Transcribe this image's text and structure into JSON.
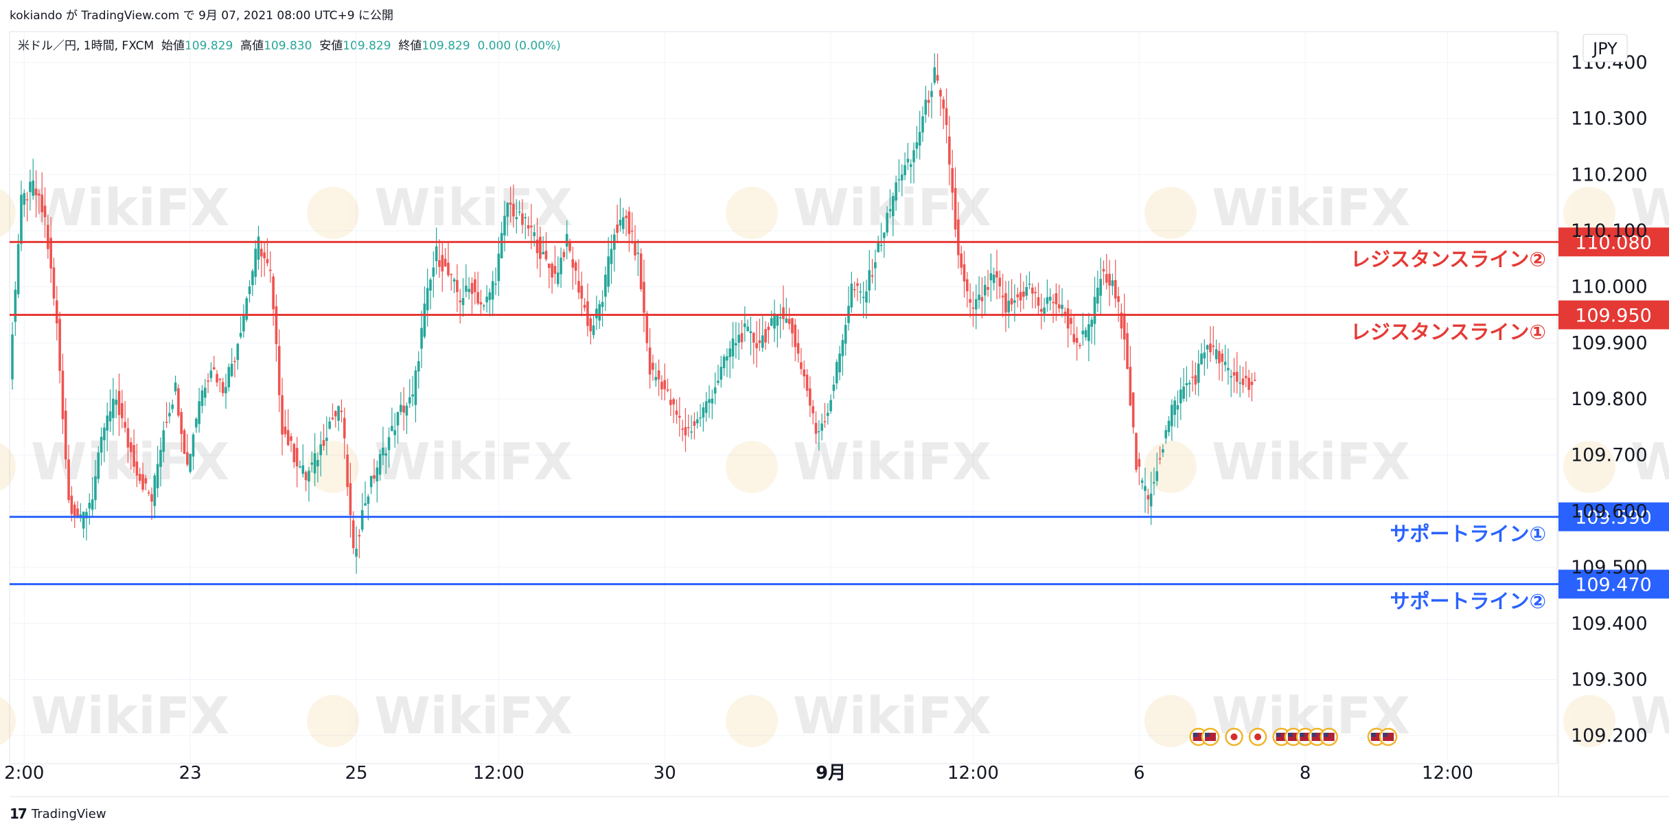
{
  "header": {
    "published": "kokiando が TradingView.com で 9月 07, 2021 08:00 UTC+9 に公開"
  },
  "legend": {
    "symbol": "米ドル／円, 1時間, FXCM",
    "open_label": "始値",
    "open": "109.829",
    "high_label": "高値",
    "high": "109.830",
    "low_label": "安値",
    "low": "109.829",
    "close_label": "終値",
    "close": "109.829",
    "change": "0.000 (0.00%)"
  },
  "currency_button": "JPY",
  "watermark": "WikiFX",
  "footer": {
    "logo": "17",
    "brand": "TradingView"
  },
  "colors": {
    "up": "#26a69a",
    "down": "#ef5350",
    "resistance": "#e53935",
    "support": "#2962ff",
    "grid": "#f0f3fa",
    "text": "#131722"
  },
  "chart_data": {
    "type": "candlestick",
    "ylim": [
      109.15,
      110.455
    ],
    "y_ticks": [
      "110.400",
      "110.300",
      "110.200",
      "110.100",
      "110.000",
      "109.900",
      "109.800",
      "109.700",
      "109.600",
      "109.500",
      "109.400",
      "109.300",
      "109.200"
    ],
    "x_ticks": [
      {
        "label": "2:00",
        "index": 1
      },
      {
        "label": "23",
        "index": 15
      },
      {
        "label": "25",
        "index": 29
      },
      {
        "label": "12:00",
        "index": 41
      },
      {
        "label": "30",
        "index": 55
      },
      {
        "label": "9月",
        "index": 69,
        "bold": true
      },
      {
        "label": "12:00",
        "index": 81
      },
      {
        "label": "6",
        "index": 95
      },
      {
        "label": "8",
        "index": 109
      },
      {
        "label": "12:00",
        "index": 121
      }
    ],
    "horizontal_lines": [
      {
        "price": 110.08,
        "label": "110.080",
        "annotation": "レジスタンスライン②",
        "kind": "resistance"
      },
      {
        "price": 109.95,
        "label": "109.950",
        "annotation": "レジスタンスライン①",
        "kind": "resistance"
      },
      {
        "price": 109.59,
        "label": "109.590",
        "annotation": "サポートライン①",
        "kind": "support"
      },
      {
        "price": 109.47,
        "label": "109.470",
        "annotation": "サポートライン②",
        "kind": "support"
      }
    ],
    "close_path": [
      [
        0,
        109.85
      ],
      [
        1,
        110.15
      ],
      [
        2,
        110.18
      ],
      [
        3,
        110.12
      ],
      [
        4,
        109.93
      ],
      [
        5,
        109.62
      ],
      [
        6,
        109.58
      ],
      [
        7,
        109.63
      ],
      [
        8,
        109.75
      ],
      [
        9,
        109.8
      ],
      [
        10,
        109.72
      ],
      [
        11,
        109.66
      ],
      [
        12,
        109.62
      ],
      [
        13,
        109.75
      ],
      [
        14,
        109.82
      ],
      [
        15,
        109.68
      ],
      [
        16,
        109.8
      ],
      [
        17,
        109.86
      ],
      [
        18,
        109.82
      ],
      [
        19,
        109.88
      ],
      [
        20,
        109.98
      ],
      [
        21,
        110.08
      ],
      [
        22,
        110.02
      ],
      [
        23,
        109.75
      ],
      [
        24,
        109.7
      ],
      [
        25,
        109.66
      ],
      [
        26,
        109.7
      ],
      [
        27,
        109.76
      ],
      [
        28,
        109.78
      ],
      [
        29,
        109.52
      ],
      [
        30,
        109.62
      ],
      [
        31,
        109.68
      ],
      [
        32,
        109.73
      ],
      [
        33,
        109.78
      ],
      [
        34,
        109.8
      ],
      [
        35,
        109.96
      ],
      [
        36,
        110.06
      ],
      [
        37,
        110.02
      ],
      [
        38,
        109.98
      ],
      [
        39,
        110.0
      ],
      [
        40,
        109.96
      ],
      [
        41,
        110.02
      ],
      [
        42,
        110.15
      ],
      [
        43,
        110.12
      ],
      [
        44,
        110.1
      ],
      [
        45,
        110.05
      ],
      [
        46,
        110.02
      ],
      [
        47,
        110.08
      ],
      [
        48,
        110.0
      ],
      [
        49,
        109.92
      ],
      [
        50,
        109.98
      ],
      [
        51,
        110.1
      ],
      [
        52,
        110.12
      ],
      [
        53,
        110.05
      ],
      [
        54,
        109.85
      ],
      [
        55,
        109.83
      ],
      [
        56,
        109.78
      ],
      [
        57,
        109.74
      ],
      [
        58,
        109.76
      ],
      [
        59,
        109.8
      ],
      [
        60,
        109.85
      ],
      [
        61,
        109.9
      ],
      [
        62,
        109.92
      ],
      [
        63,
        109.9
      ],
      [
        64,
        109.92
      ],
      [
        65,
        109.96
      ],
      [
        66,
        109.92
      ],
      [
        67,
        109.84
      ],
      [
        68,
        109.74
      ],
      [
        69,
        109.78
      ],
      [
        70,
        109.88
      ],
      [
        71,
        110.0
      ],
      [
        72,
        109.98
      ],
      [
        73,
        110.05
      ],
      [
        74,
        110.12
      ],
      [
        75,
        110.2
      ],
      [
        76,
        110.22
      ],
      [
        77,
        110.3
      ],
      [
        78,
        110.38
      ],
      [
        79,
        110.28
      ],
      [
        80,
        110.05
      ],
      [
        81,
        109.96
      ],
      [
        82,
        109.98
      ],
      [
        83,
        110.02
      ],
      [
        84,
        109.96
      ],
      [
        85,
        109.98
      ],
      [
        86,
        110.0
      ],
      [
        87,
        109.96
      ],
      [
        88,
        109.98
      ],
      [
        89,
        109.95
      ],
      [
        90,
        109.9
      ],
      [
        91,
        109.92
      ],
      [
        92,
        110.02
      ],
      [
        93,
        110.0
      ],
      [
        94,
        109.92
      ],
      [
        95,
        109.68
      ],
      [
        96,
        109.62
      ],
      [
        97,
        109.7
      ],
      [
        98,
        109.78
      ],
      [
        99,
        109.82
      ],
      [
        100,
        109.84
      ],
      [
        101,
        109.9
      ],
      [
        102,
        109.87
      ],
      [
        103,
        109.84
      ],
      [
        104,
        109.83
      ],
      [
        105,
        109.83
      ]
    ],
    "event_flags": [
      {
        "index": 100,
        "kind": "us"
      },
      {
        "index": 101,
        "kind": "us"
      },
      {
        "index": 103,
        "kind": "jp"
      },
      {
        "index": 105,
        "kind": "jp"
      },
      {
        "index": 107,
        "kind": "us"
      },
      {
        "index": 108,
        "kind": "us"
      },
      {
        "index": 109,
        "kind": "us"
      },
      {
        "index": 110,
        "kind": "us"
      },
      {
        "index": 111,
        "kind": "us"
      },
      {
        "index": 115,
        "kind": "us"
      },
      {
        "index": 116,
        "kind": "us"
      }
    ]
  }
}
